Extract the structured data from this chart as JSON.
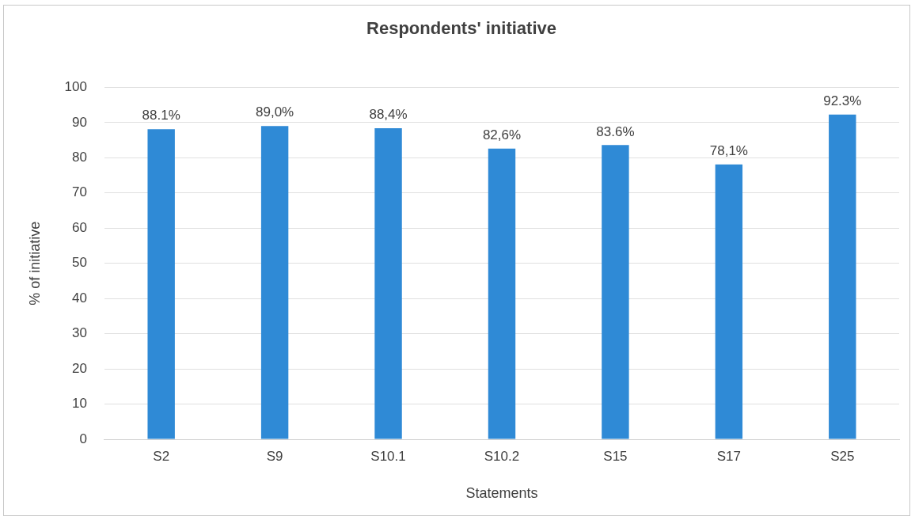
{
  "chart_data": {
    "type": "bar",
    "title": "Respondents' initiative",
    "xlabel": "Statements",
    "ylabel": "% of initiative",
    "categories": [
      "S2",
      "S9",
      "S10.1",
      "S10.2",
      "S15",
      "S17",
      "S25"
    ],
    "values": [
      88.1,
      89.0,
      88.4,
      82.6,
      83.6,
      78.1,
      92.3
    ],
    "value_labels": [
      "88.1%",
      "89,0%",
      "88,4%",
      "82,6%",
      "83.6%",
      "78,1%",
      "92.3%"
    ],
    "color": "#2f8ad6",
    "ylim": [
      0,
      100
    ],
    "yticks": [
      0,
      10,
      20,
      30,
      40,
      50,
      60,
      70,
      80,
      90,
      100
    ],
    "grid": "y"
  }
}
